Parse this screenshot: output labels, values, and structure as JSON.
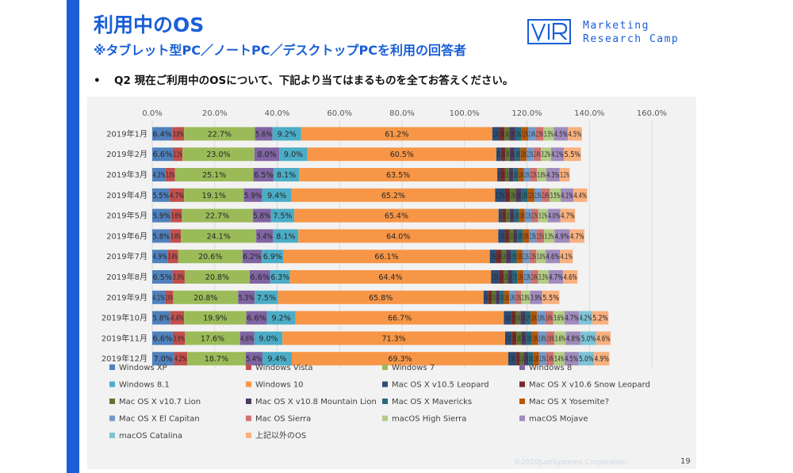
{
  "page": {
    "title": "利用中のOS",
    "subtitle": "※タブレット型PC／ノートPC／デスクトップPCを利用の回答者",
    "question": "Q2 現在ご利用中のOSについて、下記より当てはまるものを全てお答えください。",
    "bullet": "•",
    "logo_line1": "Marketing",
    "logo_line2": "Research Camp",
    "footer": "©2020JustSystems Corporation",
    "page_number": "19"
  },
  "chart_data": {
    "type": "bar",
    "orientation": "horizontal",
    "stacked": true,
    "x_ticks": [
      "0.0%",
      "20.0%",
      "40.0%",
      "60.0%",
      "80.0%",
      "100.0%",
      "120.0%",
      "140.0%",
      "160.0%"
    ],
    "xlim": [
      0,
      160
    ],
    "grid": true,
    "legend_position": "bottom",
    "categories": [
      "2019年1月",
      "2019年2月",
      "2019年3月",
      "2019年4月",
      "2019年5月",
      "2019年6月",
      "2019年7月",
      "2019年8月",
      "2019年9月",
      "2019年10月",
      "2019年11月",
      "2019年12月"
    ],
    "series": [
      {
        "name": "Windows XP",
        "color": "#4f81bd",
        "values": [
          6.4,
          6.6,
          4.3,
          5.5,
          5.9,
          5.8,
          4.9,
          6.5,
          4.1,
          5.8,
          6.6,
          7.0
        ]
      },
      {
        "name": "Windows Vista",
        "color": "#c0504d",
        "values": [
          3.8,
          3.1,
          3.0,
          4.7,
          3.6,
          3.4,
          3.4,
          3.9,
          2.6,
          4.4,
          3.9,
          4.2
        ]
      },
      {
        "name": "Windows 7",
        "color": "#9bbb59",
        "values": [
          22.7,
          23.0,
          25.1,
          19.1,
          22.7,
          24.1,
          20.6,
          20.8,
          20.8,
          19.9,
          17.6,
          18.7
        ]
      },
      {
        "name": "Windows 8",
        "color": "#8064a2",
        "values": [
          5.6,
          8.0,
          6.5,
          5.9,
          5.8,
          5.4,
          6.2,
          6.6,
          5.3,
          6.6,
          4.6,
          5.4
        ]
      },
      {
        "name": "Windows 8.1",
        "color": "#4bacc6",
        "values": [
          9.2,
          9.0,
          8.1,
          9.4,
          7.5,
          8.1,
          6.9,
          6.3,
          7.5,
          9.2,
          9.0,
          9.4
        ]
      },
      {
        "name": "Windows 10",
        "color": "#f79646",
        "values": [
          61.2,
          60.5,
          63.5,
          65.2,
          65.4,
          64.0,
          66.1,
          64.4,
          65.8,
          66.7,
          71.3,
          69.3
        ]
      },
      {
        "name": "Mac OS X v10.5 Leopard",
        "color": "#2c4d75",
        "values": [
          2.1,
          1.5,
          1.0,
          3.2,
          1.2,
          2.1,
          2.0,
          2.5,
          1.4,
          2.4,
          2.1,
          2.5
        ]
      },
      {
        "name": "Mac OS X v10.6 Snow Leopard",
        "color": "#772c2a",
        "values": [
          1.8,
          1.4,
          1.5,
          1.6,
          1.2,
          1.5,
          1.8,
          1.6,
          1.3,
          1.5,
          1.5,
          1.3
        ]
      },
      {
        "name": "Mac OS X v10.7 Lion",
        "color": "#5f7530",
        "values": [
          1.6,
          1.4,
          1.2,
          1.8,
          1.2,
          1.2,
          1.4,
          1.3,
          1.2,
          1.4,
          1.6,
          1.2
        ]
      },
      {
        "name": "Mac OS X v10.8 Mountain Lion",
        "color": "#4d3b62",
        "values": [
          1.8,
          1.6,
          1.4,
          1.9,
          1.4,
          1.3,
          1.6,
          1.4,
          1.3,
          1.6,
          1.6,
          1.4
        ]
      },
      {
        "name": "Mac OS X Mavericks",
        "color": "#276a7c",
        "values": [
          2.0,
          1.8,
          1.6,
          2.0,
          1.6,
          1.8,
          1.8,
          1.7,
          1.4,
          1.7,
          1.8,
          1.6
        ]
      },
      {
        "name": "Mac OS X Yosemite?",
        "color": "#b65708",
        "values": [
          2.2,
          2.0,
          1.8,
          2.1,
          1.8,
          2.0,
          1.9,
          1.9,
          1.6,
          2.0,
          2.0,
          1.9
        ]
      },
      {
        "name": "Mac OS X El Capitan",
        "color": "#729aca",
        "values": [
          2.4,
          2.2,
          2.0,
          2.3,
          2.1,
          2.3,
          2.1,
          2.3,
          1.9,
          2.6,
          2.6,
          2.3
        ]
      },
      {
        "name": "Mac OS Sierra",
        "color": "#cd7371",
        "values": [
          2.5,
          2.4,
          2.2,
          2.6,
          2.2,
          2.5,
          2.3,
          2.4,
          2.0,
          2.6,
          2.6,
          2.4
        ]
      },
      {
        "name": "macOS High Sierra",
        "color": "#b3cd85",
        "values": [
          3.3,
          3.2,
          3.0,
          3.5,
          3.1,
          3.3,
          3.0,
          3.3,
          2.8,
          3.6,
          3.6,
          3.4
        ]
      },
      {
        "name": "macOS Mojave",
        "color": "#a08bbc",
        "values": [
          4.5,
          4.1,
          4.3,
          4.1,
          4.0,
          4.9,
          4.6,
          4.7,
          3.9,
          4.7,
          4.8,
          4.5
        ]
      },
      {
        "name": "macOS Catalina",
        "color": "#7ec3d6",
        "values": [
          0.0,
          0.0,
          0.0,
          0.0,
          0.0,
          0.0,
          0.0,
          0.0,
          0.0,
          4.2,
          5.0,
          5.0
        ]
      },
      {
        "name": "上記以外のOS",
        "color": "#f9b17f",
        "values": [
          4.5,
          5.5,
          3.2,
          4.4,
          4.7,
          4.7,
          4.1,
          4.6,
          5.5,
          5.2,
          4.6,
          4.9
        ]
      }
    ]
  }
}
